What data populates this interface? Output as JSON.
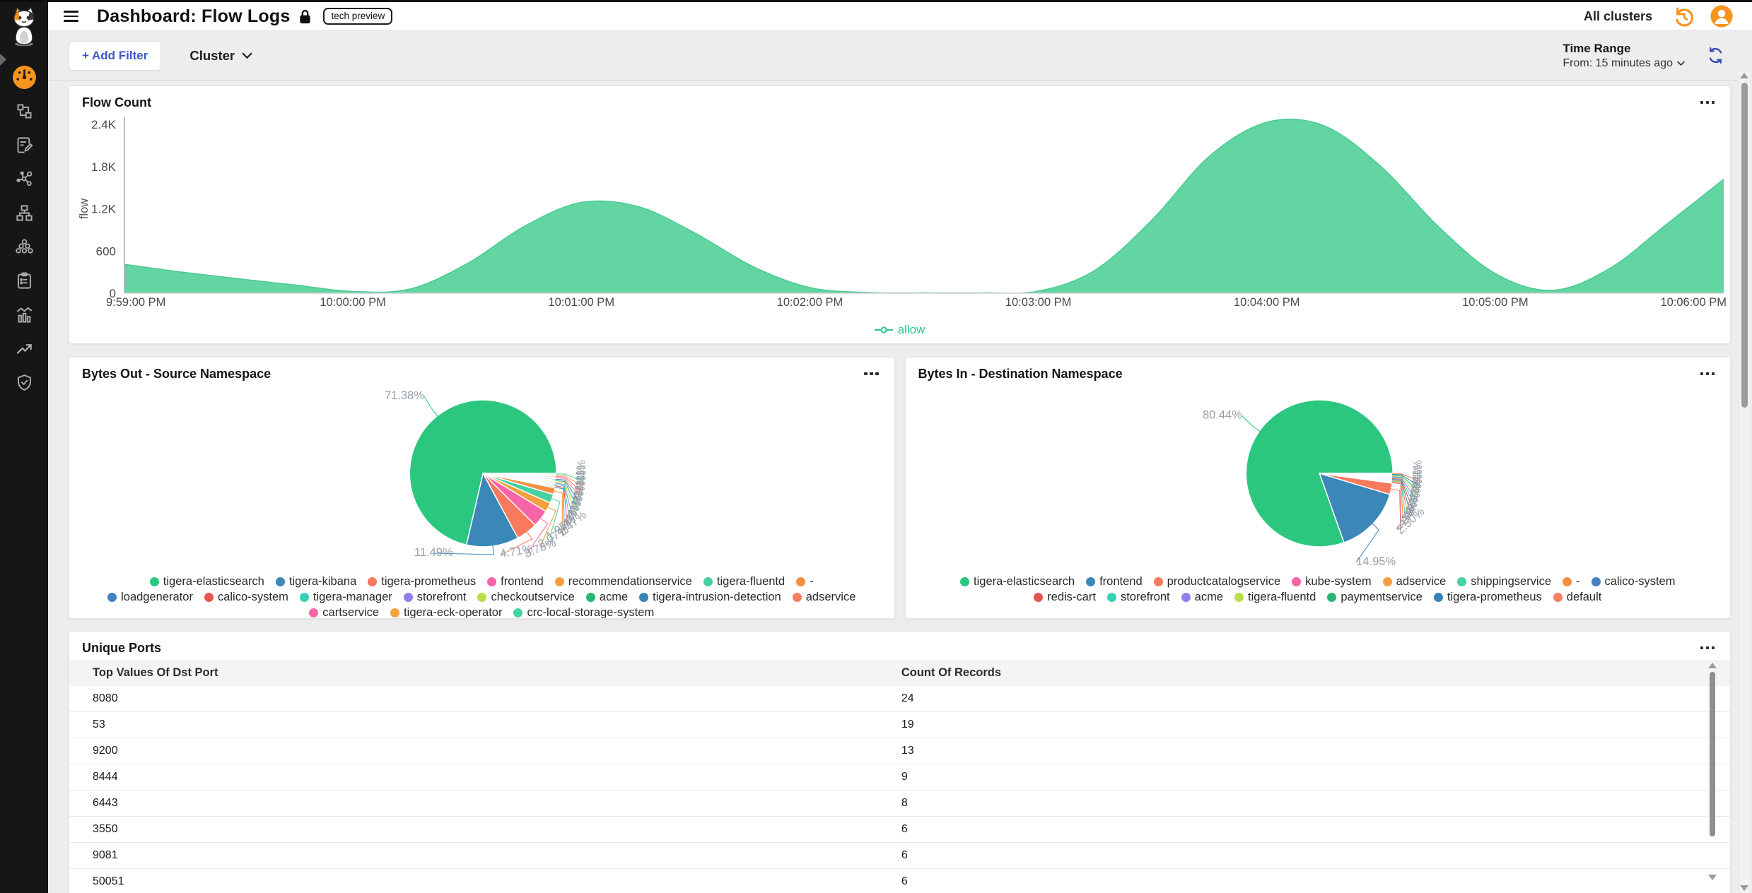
{
  "topbar": {
    "title": "Dashboard: Flow Logs",
    "badge": "tech preview",
    "cluster_scope": "All clusters"
  },
  "sidebar": {
    "items": [
      {
        "id": "dashboard",
        "icon": "gauge-icon",
        "active": true
      },
      {
        "id": "topology",
        "icon": "topology-icon",
        "active": false
      },
      {
        "id": "logs",
        "icon": "document-edit-icon",
        "active": false
      },
      {
        "id": "graph",
        "icon": "molecule-icon",
        "active": false
      },
      {
        "id": "network",
        "icon": "sitemap-icon",
        "active": false
      },
      {
        "id": "clusters",
        "icon": "cluster-icon",
        "active": false
      },
      {
        "id": "reports",
        "icon": "clipboard-icon",
        "active": false
      },
      {
        "id": "metrics",
        "icon": "bar-chart-icon",
        "active": false
      },
      {
        "id": "trends",
        "icon": "trend-up-icon",
        "active": false
      },
      {
        "id": "compliance",
        "icon": "shield-check-icon",
        "active": false
      }
    ]
  },
  "filter_bar": {
    "add_filter_label": "+ Add Filter",
    "cluster_label": "Cluster"
  },
  "time_range": {
    "label": "Time Range",
    "value": "From: 15 minutes ago"
  },
  "colors": {
    "accent_orange": "#f7941d",
    "link_blue": "#3d56c6",
    "area_green": "#63d5a2",
    "legend_green": "#27c98c"
  },
  "chart_data": [
    {
      "type": "area",
      "title": "Flow Count",
      "ylabel": "flow",
      "y_max": 2400,
      "y_ticks": [
        "0",
        "600",
        "1.2K",
        "1.8K",
        "2.4K"
      ],
      "x_labels": [
        "9:59:00 PM",
        "10:00:00 PM",
        "10:01:00 PM",
        "10:02:00 PM",
        "10:03:00 PM",
        "10:04:00 PM",
        "10:05:00 PM",
        "10:06:00 PM"
      ],
      "series": [
        {
          "name": "allow",
          "color": "#63d5a2",
          "stroke": "#49cb93",
          "values": [
            410,
            300,
            205,
            115,
            25,
            60,
            420,
            950,
            1290,
            1230,
            850,
            380,
            80,
            10,
            5,
            5,
            30,
            330,
            1050,
            1950,
            2430,
            2380,
            1800,
            950,
            280,
            40,
            350,
            980,
            1620
          ]
        }
      ],
      "legend": [
        {
          "label": "allow",
          "color": "#27c98c"
        }
      ],
      "grid": false
    },
    {
      "type": "pie",
      "title": "Bytes Out - Source Namespace",
      "slices": [
        {
          "name": "tigera-elasticsearch",
          "value": 71.38,
          "label": "71.38%",
          "color": "#2bc77f"
        },
        {
          "name": "tigera-kibana",
          "value": 11.49,
          "label": "11.49%",
          "color": "#3a87b8"
        },
        {
          "name": "tigera-prometheus",
          "value": 4.71,
          "label": "4.71%",
          "color": "#f87a5e"
        },
        {
          "name": "frontend",
          "value": 3.78,
          "label": "3.78%",
          "color": "#f763a8"
        },
        {
          "name": "recommendationservice",
          "value": 2.07,
          "label": "2.07%",
          "color": "#f5a03c"
        },
        {
          "name": "tigera-fluentd",
          "value": 1.95,
          "label": "1.95%",
          "color": "#45d1a0"
        },
        {
          "name": "-",
          "value": 1.47,
          "label": "1.47%",
          "color": "#f0913f"
        },
        {
          "name": "loadgenerator",
          "value": 0.29,
          "label": "<1%",
          "color": "#4580c2"
        },
        {
          "name": "calico-system",
          "value": 0.29,
          "label": "<1%",
          "color": "#e8534f"
        },
        {
          "name": "tigera-manager",
          "value": 0.29,
          "label": "<1%",
          "color": "#38cfb5"
        },
        {
          "name": "storefront",
          "value": 0.29,
          "label": "<1%",
          "color": "#8f80f0"
        },
        {
          "name": "checkoutservice",
          "value": 0.29,
          "label": "<1%",
          "color": "#b8e04a"
        },
        {
          "name": "acme",
          "value": 0.29,
          "label": "<1%",
          "color": "#2bb673"
        },
        {
          "name": "tigera-intrusion-detection",
          "value": 0.29,
          "label": "<1%",
          "color": "#3584b5"
        },
        {
          "name": "adservice",
          "value": 0.29,
          "label": "<1%",
          "color": "#f87f63"
        },
        {
          "name": "cartservice",
          "value": 0.29,
          "label": "<1%",
          "color": "#f765a3"
        },
        {
          "name": "tigera-eck-operator",
          "value": 0.28,
          "label": "<1%",
          "color": "#f5a03c"
        },
        {
          "name": "crc-local-storage-system",
          "value": 0.28,
          "label": "<1%",
          "color": "#45d1a0"
        }
      ]
    },
    {
      "type": "pie",
      "title": "Bytes In - Destination Namespace",
      "slices": [
        {
          "name": "tigera-elasticsearch",
          "value": 80.44,
          "label": "80.44%",
          "color": "#2bc77f"
        },
        {
          "name": "frontend",
          "value": 14.95,
          "label": "14.95%",
          "color": "#3a87b8"
        },
        {
          "name": "productcatalogservice",
          "value": 2.5,
          "label": "2.50%",
          "color": "#f87a5e"
        },
        {
          "name": "kube-system",
          "value": 0.18,
          "label": "<1%",
          "color": "#f763a8"
        },
        {
          "name": "adservice",
          "value": 0.18,
          "label": "<1%",
          "color": "#f5a03c"
        },
        {
          "name": "shippingservice",
          "value": 0.18,
          "label": "<1%",
          "color": "#45d1a0"
        },
        {
          "name": "-",
          "value": 0.18,
          "label": "<1%",
          "color": "#f0913f"
        },
        {
          "name": "calico-system",
          "value": 0.18,
          "label": "<1%",
          "color": "#4580c2"
        },
        {
          "name": "redis-cart",
          "value": 0.18,
          "label": "<1%",
          "color": "#e8534f"
        },
        {
          "name": "storefront",
          "value": 0.18,
          "label": "<1%",
          "color": "#38cfb5"
        },
        {
          "name": "acme",
          "value": 0.18,
          "label": "<1%",
          "color": "#8f80f0"
        },
        {
          "name": "tigera-fluentd",
          "value": 0.18,
          "label": "<1%",
          "color": "#b8e04a"
        },
        {
          "name": "paymentservice",
          "value": 0.17,
          "label": "<1%",
          "color": "#2bb673"
        },
        {
          "name": "tigera-prometheus",
          "value": 0.17,
          "label": "<1%",
          "color": "#3584b5"
        },
        {
          "name": "default",
          "value": 0.17,
          "label": "<1%",
          "color": "#f87f63"
        }
      ]
    },
    {
      "type": "table",
      "title": "Unique Ports",
      "columns": [
        "Top Values Of Dst Port",
        "Count Of Records"
      ],
      "rows": [
        [
          "8080",
          "24"
        ],
        [
          "53",
          "19"
        ],
        [
          "9200",
          "13"
        ],
        [
          "8444",
          "9"
        ],
        [
          "6443",
          "8"
        ],
        [
          "3550",
          "6"
        ],
        [
          "9081",
          "6"
        ],
        [
          "50051",
          "6"
        ]
      ]
    }
  ]
}
